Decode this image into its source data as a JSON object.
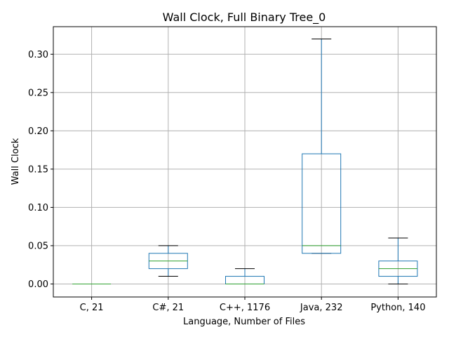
{
  "chart_data": {
    "type": "box",
    "title": "Wall Clock, Full Binary Tree_0",
    "xlabel": "Language, Number of Files",
    "ylabel": "Wall Clock",
    "ylim": [
      -0.017,
      0.336
    ],
    "yticks": [
      0.0,
      0.05,
      0.1,
      0.15,
      0.2,
      0.25,
      0.3
    ],
    "ytick_labels": [
      "0.00",
      "0.05",
      "0.10",
      "0.15",
      "0.20",
      "0.25",
      "0.30"
    ],
    "grid": true,
    "categories": [
      "C, 21",
      "C#, 21",
      "C++, 1176",
      "Java, 232",
      "Python, 140"
    ],
    "boxes": [
      {
        "whisker_low": 0.0,
        "q1": 0.0,
        "median": 0.0,
        "q3": 0.0,
        "whisker_high": 0.0
      },
      {
        "whisker_low": 0.01,
        "q1": 0.02,
        "median": 0.03,
        "q3": 0.04,
        "whisker_high": 0.05
      },
      {
        "whisker_low": 0.0,
        "q1": 0.0,
        "median": 0.0,
        "q3": 0.01,
        "whisker_high": 0.02
      },
      {
        "whisker_low": 0.04,
        "q1": 0.04,
        "median": 0.05,
        "q3": 0.17,
        "whisker_high": 0.32
      },
      {
        "whisker_low": 0.0,
        "q1": 0.01,
        "median": 0.02,
        "q3": 0.03,
        "whisker_high": 0.06
      }
    ],
    "colors": {
      "box": "#1f77b4",
      "median": "#2ca02c",
      "whisker_cap": "#000000",
      "grid": "#b0b0b0"
    }
  }
}
